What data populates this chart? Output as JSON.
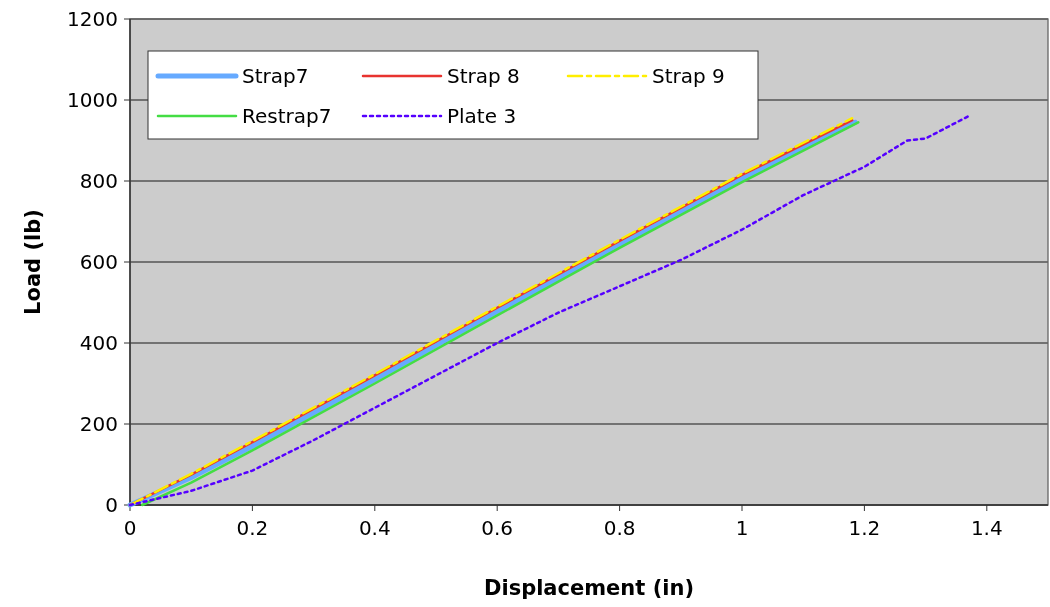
{
  "chart_data": {
    "type": "line",
    "xlabel": "Displacement (in)",
    "ylabel": "Load (lb)",
    "xlim": [
      0,
      1.5
    ],
    "xticks": [
      0,
      0.2,
      0.4,
      0.6,
      0.8,
      1,
      1.2,
      1.4
    ],
    "ylim": [
      0,
      1200
    ],
    "yticks": [
      0,
      200,
      400,
      600,
      800,
      1000,
      1200
    ],
    "grid": "y",
    "legend": "top left",
    "series": [
      {
        "name": "Strap7",
        "color": "#66aaff",
        "line_style": "solid",
        "x": [
          0,
          0.1,
          0.2,
          0.4,
          0.6,
          0.8,
          1.0,
          1.185
        ],
        "values": [
          0,
          68,
          145,
          310,
          478,
          642,
          805,
          945
        ]
      },
      {
        "name": "Strap 8",
        "color": "#e8332f",
        "line_style": "solid",
        "x": [
          0,
          0.1,
          0.2,
          0.4,
          0.6,
          0.8,
          1.0,
          1.18
        ],
        "values": [
          0,
          75,
          155,
          320,
          487,
          652,
          815,
          950
        ]
      },
      {
        "name": "Strap 9",
        "color": "#ffee00",
        "line_style": "dashed",
        "x": [
          0,
          0.1,
          0.2,
          0.4,
          0.6,
          0.8,
          1.0,
          1.18
        ],
        "values": [
          0,
          77,
          158,
          323,
          490,
          655,
          818,
          955
        ]
      },
      {
        "name": "Restrap7",
        "color": "#44dd44",
        "line_style": "solid",
        "x": [
          0.02,
          0.1,
          0.2,
          0.4,
          0.6,
          0.8,
          1.0,
          1.19
        ],
        "values": [
          0,
          55,
          135,
          300,
          468,
          635,
          797,
          945
        ]
      },
      {
        "name": "Plate 3",
        "color": "#5500ff",
        "line_style": "dotted",
        "x": [
          0,
          0.1,
          0.2,
          0.3,
          0.4,
          0.5,
          0.6,
          0.7,
          0.8,
          0.9,
          1.0,
          1.1,
          1.2,
          1.27,
          1.3,
          1.37
        ],
        "values": [
          0,
          35,
          85,
          160,
          240,
          320,
          400,
          475,
          540,
          605,
          680,
          765,
          835,
          900,
          905,
          960
        ]
      }
    ]
  }
}
